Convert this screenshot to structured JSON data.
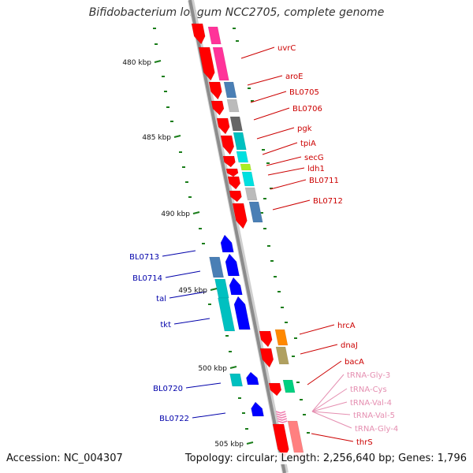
{
  "title": "Bifidobacterium longum NCC2705, complete genome",
  "accession_text": "Accession: NC_004307",
  "summary_text": "Topology: circular; Length: 2,256,640 bp; Genes: 1,796",
  "colors": {
    "backbone": "#8c8c8c",
    "backbone_shadow": "#cfcfcf",
    "tick": "#1a7d1a",
    "forward_label": "#cc0000",
    "reverse_label": "#0000aa",
    "rna_label": "#e58fb1",
    "gene_red": "#ff0000",
    "gene_pink": "#ff3399",
    "gene_blue": "#0000ff",
    "steelblue": "#4a7fb5",
    "gray": "#bbbbbb",
    "darkgray": "#666666",
    "cyan": "#00c0c0",
    "lightcyan": "#00e0e0",
    "green": "#00d080",
    "yellowgreen": "#aaee22",
    "orange": "#ff8800",
    "olive": "#b0a060",
    "salmon": "#ff8080",
    "lightpink": "#ff99cc",
    "rose": "#f07fb0"
  },
  "ruler": [
    "480 kbp",
    "485 kbp",
    "490 kbp",
    "495 kbp",
    "500 kbp",
    "505 kbp"
  ],
  "forward_labels": [
    "uvrC",
    "aroE",
    "BL0705",
    "BL0706",
    "pgk",
    "tpiA",
    "secG",
    "ldh1",
    "BL0711",
    "BL0712",
    "hrcA",
    "dnaJ",
    "bacA",
    "thrS"
  ],
  "reverse_labels": [
    "BL0713",
    "BL0714",
    "tal",
    "tkt",
    "BL0720",
    "BL0722"
  ],
  "rna_labels": [
    "tRNA-Gly-3",
    "tRNA-Cys",
    "tRNA-Val-4",
    "tRNA-Val-5",
    "tRNA-Gly-4"
  ]
}
